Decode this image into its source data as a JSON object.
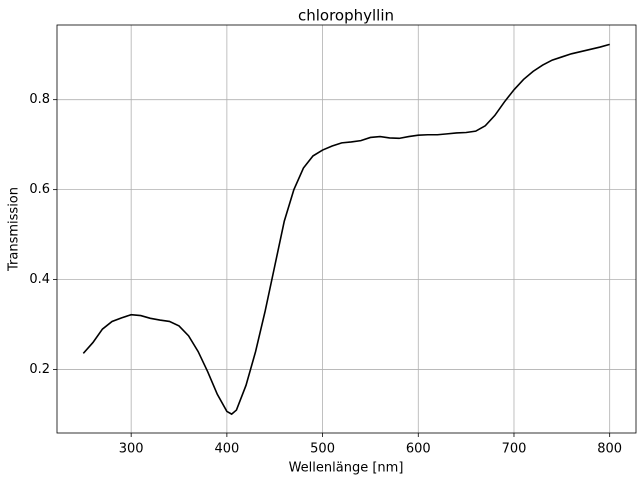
{
  "chart_data": {
    "type": "line",
    "title": "chlorophyllin",
    "x_label": "Wellenlänge [nm]",
    "y_label": "Transmission",
    "x": [
      250,
      260,
      270,
      280,
      290,
      300,
      310,
      320,
      330,
      340,
      350,
      360,
      370,
      380,
      390,
      400,
      405,
      410,
      420,
      430,
      440,
      450,
      460,
      470,
      480,
      490,
      500,
      510,
      520,
      530,
      540,
      550,
      560,
      570,
      580,
      590,
      600,
      610,
      620,
      630,
      640,
      650,
      660,
      670,
      680,
      690,
      700,
      710,
      720,
      730,
      740,
      750,
      760,
      770,
      780,
      790,
      800
    ],
    "series": [
      {
        "name": "chlorophyllin",
        "color": "#000000",
        "values": [
          0.236,
          0.26,
          0.29,
          0.307,
          0.315,
          0.322,
          0.32,
          0.314,
          0.31,
          0.307,
          0.297,
          0.275,
          0.24,
          0.195,
          0.145,
          0.107,
          0.101,
          0.11,
          0.165,
          0.24,
          0.33,
          0.43,
          0.53,
          0.6,
          0.648,
          0.675,
          0.688,
          0.697,
          0.704,
          0.706,
          0.709,
          0.716,
          0.718,
          0.715,
          0.714,
          0.718,
          0.721,
          0.722,
          0.722,
          0.724,
          0.726,
          0.727,
          0.73,
          0.742,
          0.765,
          0.795,
          0.822,
          0.845,
          0.863,
          0.877,
          0.888,
          0.895,
          0.902,
          0.907,
          0.912,
          0.917,
          0.923
        ]
      }
    ],
    "xlim": [
      222.5,
      827.5
    ],
    "ylim": [
      0.059,
      0.966
    ],
    "xticks": [
      300,
      400,
      500,
      600,
      700,
      800
    ],
    "yticks": [
      0.2,
      0.4,
      0.6,
      0.8
    ],
    "grid": true
  }
}
